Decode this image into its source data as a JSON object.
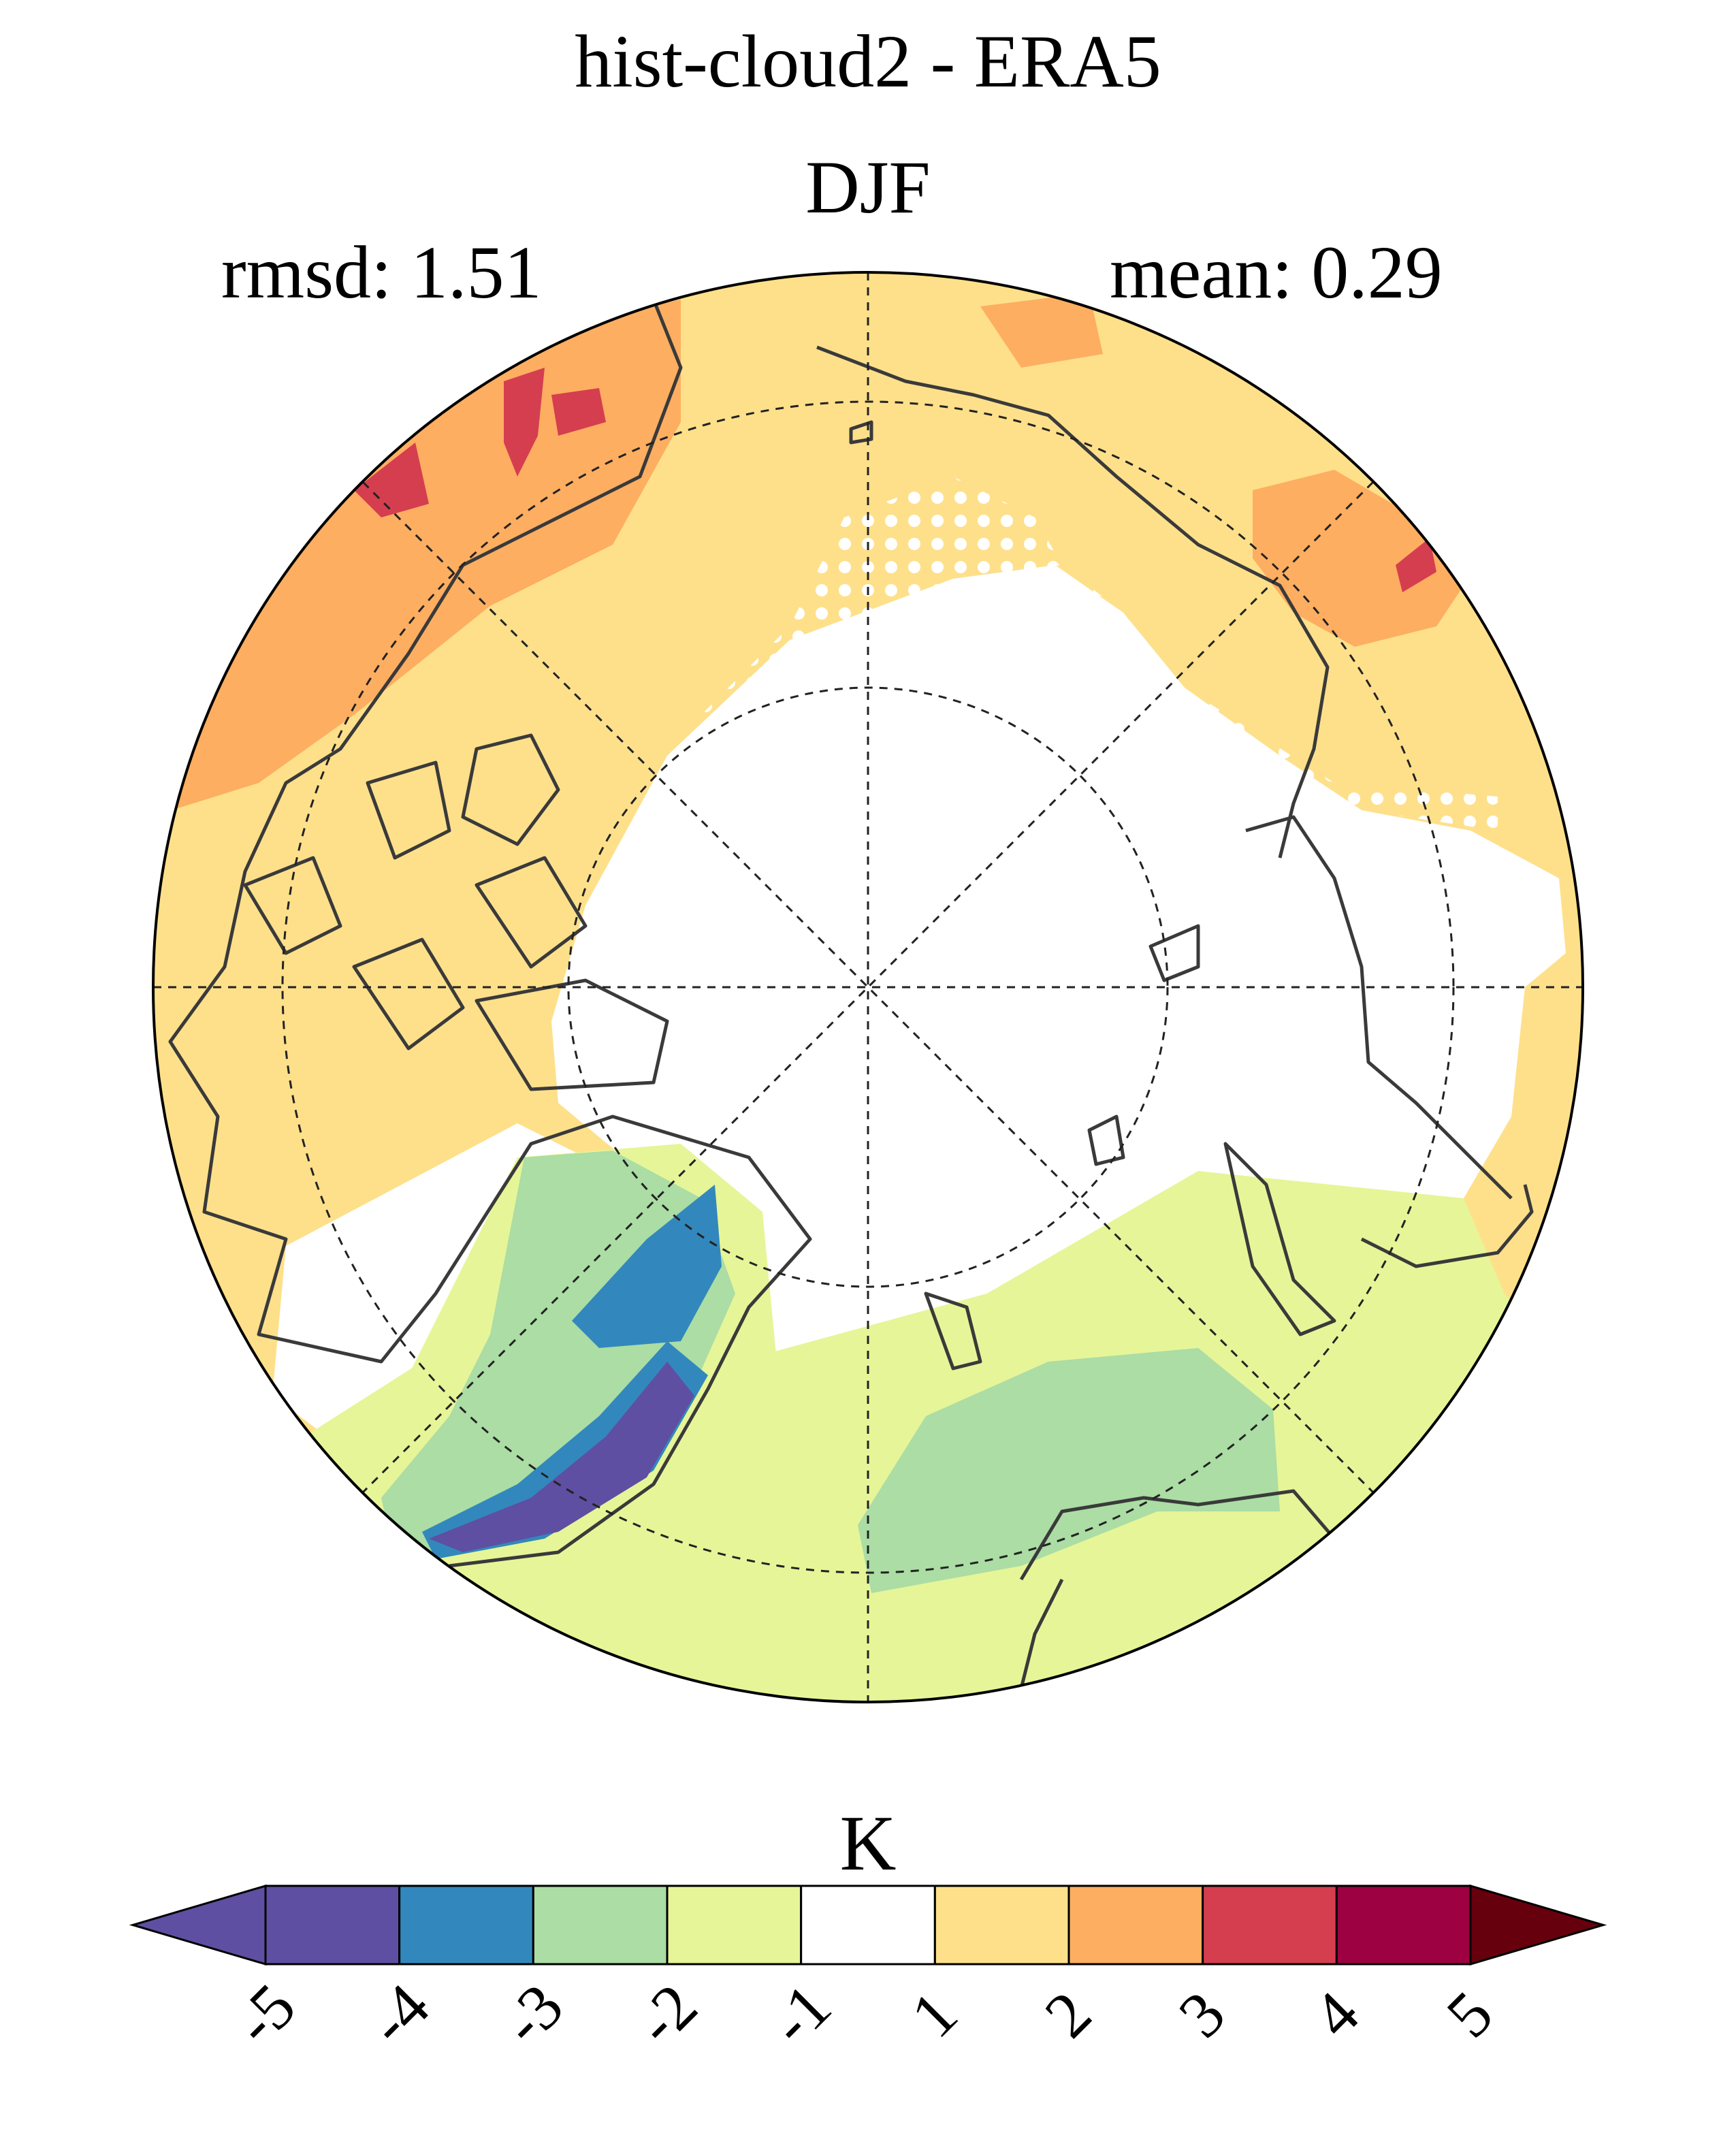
{
  "title_line1": "hist-cloud2 - ERA5",
  "title_line2": "DJF",
  "rmsd_label": "rmsd: 1.51",
  "mean_label": "mean: 0.29",
  "colorbar": {
    "units": "K",
    "tick_labels": [
      "-5",
      "-4",
      "-3",
      "-2",
      "-1",
      "1",
      "2",
      "3",
      "4",
      "5"
    ],
    "colors": [
      "#5e4fa2",
      "#5e4fa2",
      "#3288bd",
      "#abdda4",
      "#e6f598",
      "#ffffff",
      "#fee08b",
      "#fdae61",
      "#d53e4f",
      "#9e0142",
      "#67000d"
    ]
  },
  "map": {
    "projection": "north-polar-stereographic",
    "field_colors": {
      "ocean_white": "#ffffff",
      "warm_1": "#fee08b",
      "warm_2": "#fdae61",
      "warm_3": "#d53e4f",
      "cool_1": "#e6f598",
      "cool_2": "#abdda4",
      "cool_3": "#3288bd",
      "cool_4": "#5e4fa2"
    },
    "stippling": true,
    "graticule": "dashed"
  }
}
